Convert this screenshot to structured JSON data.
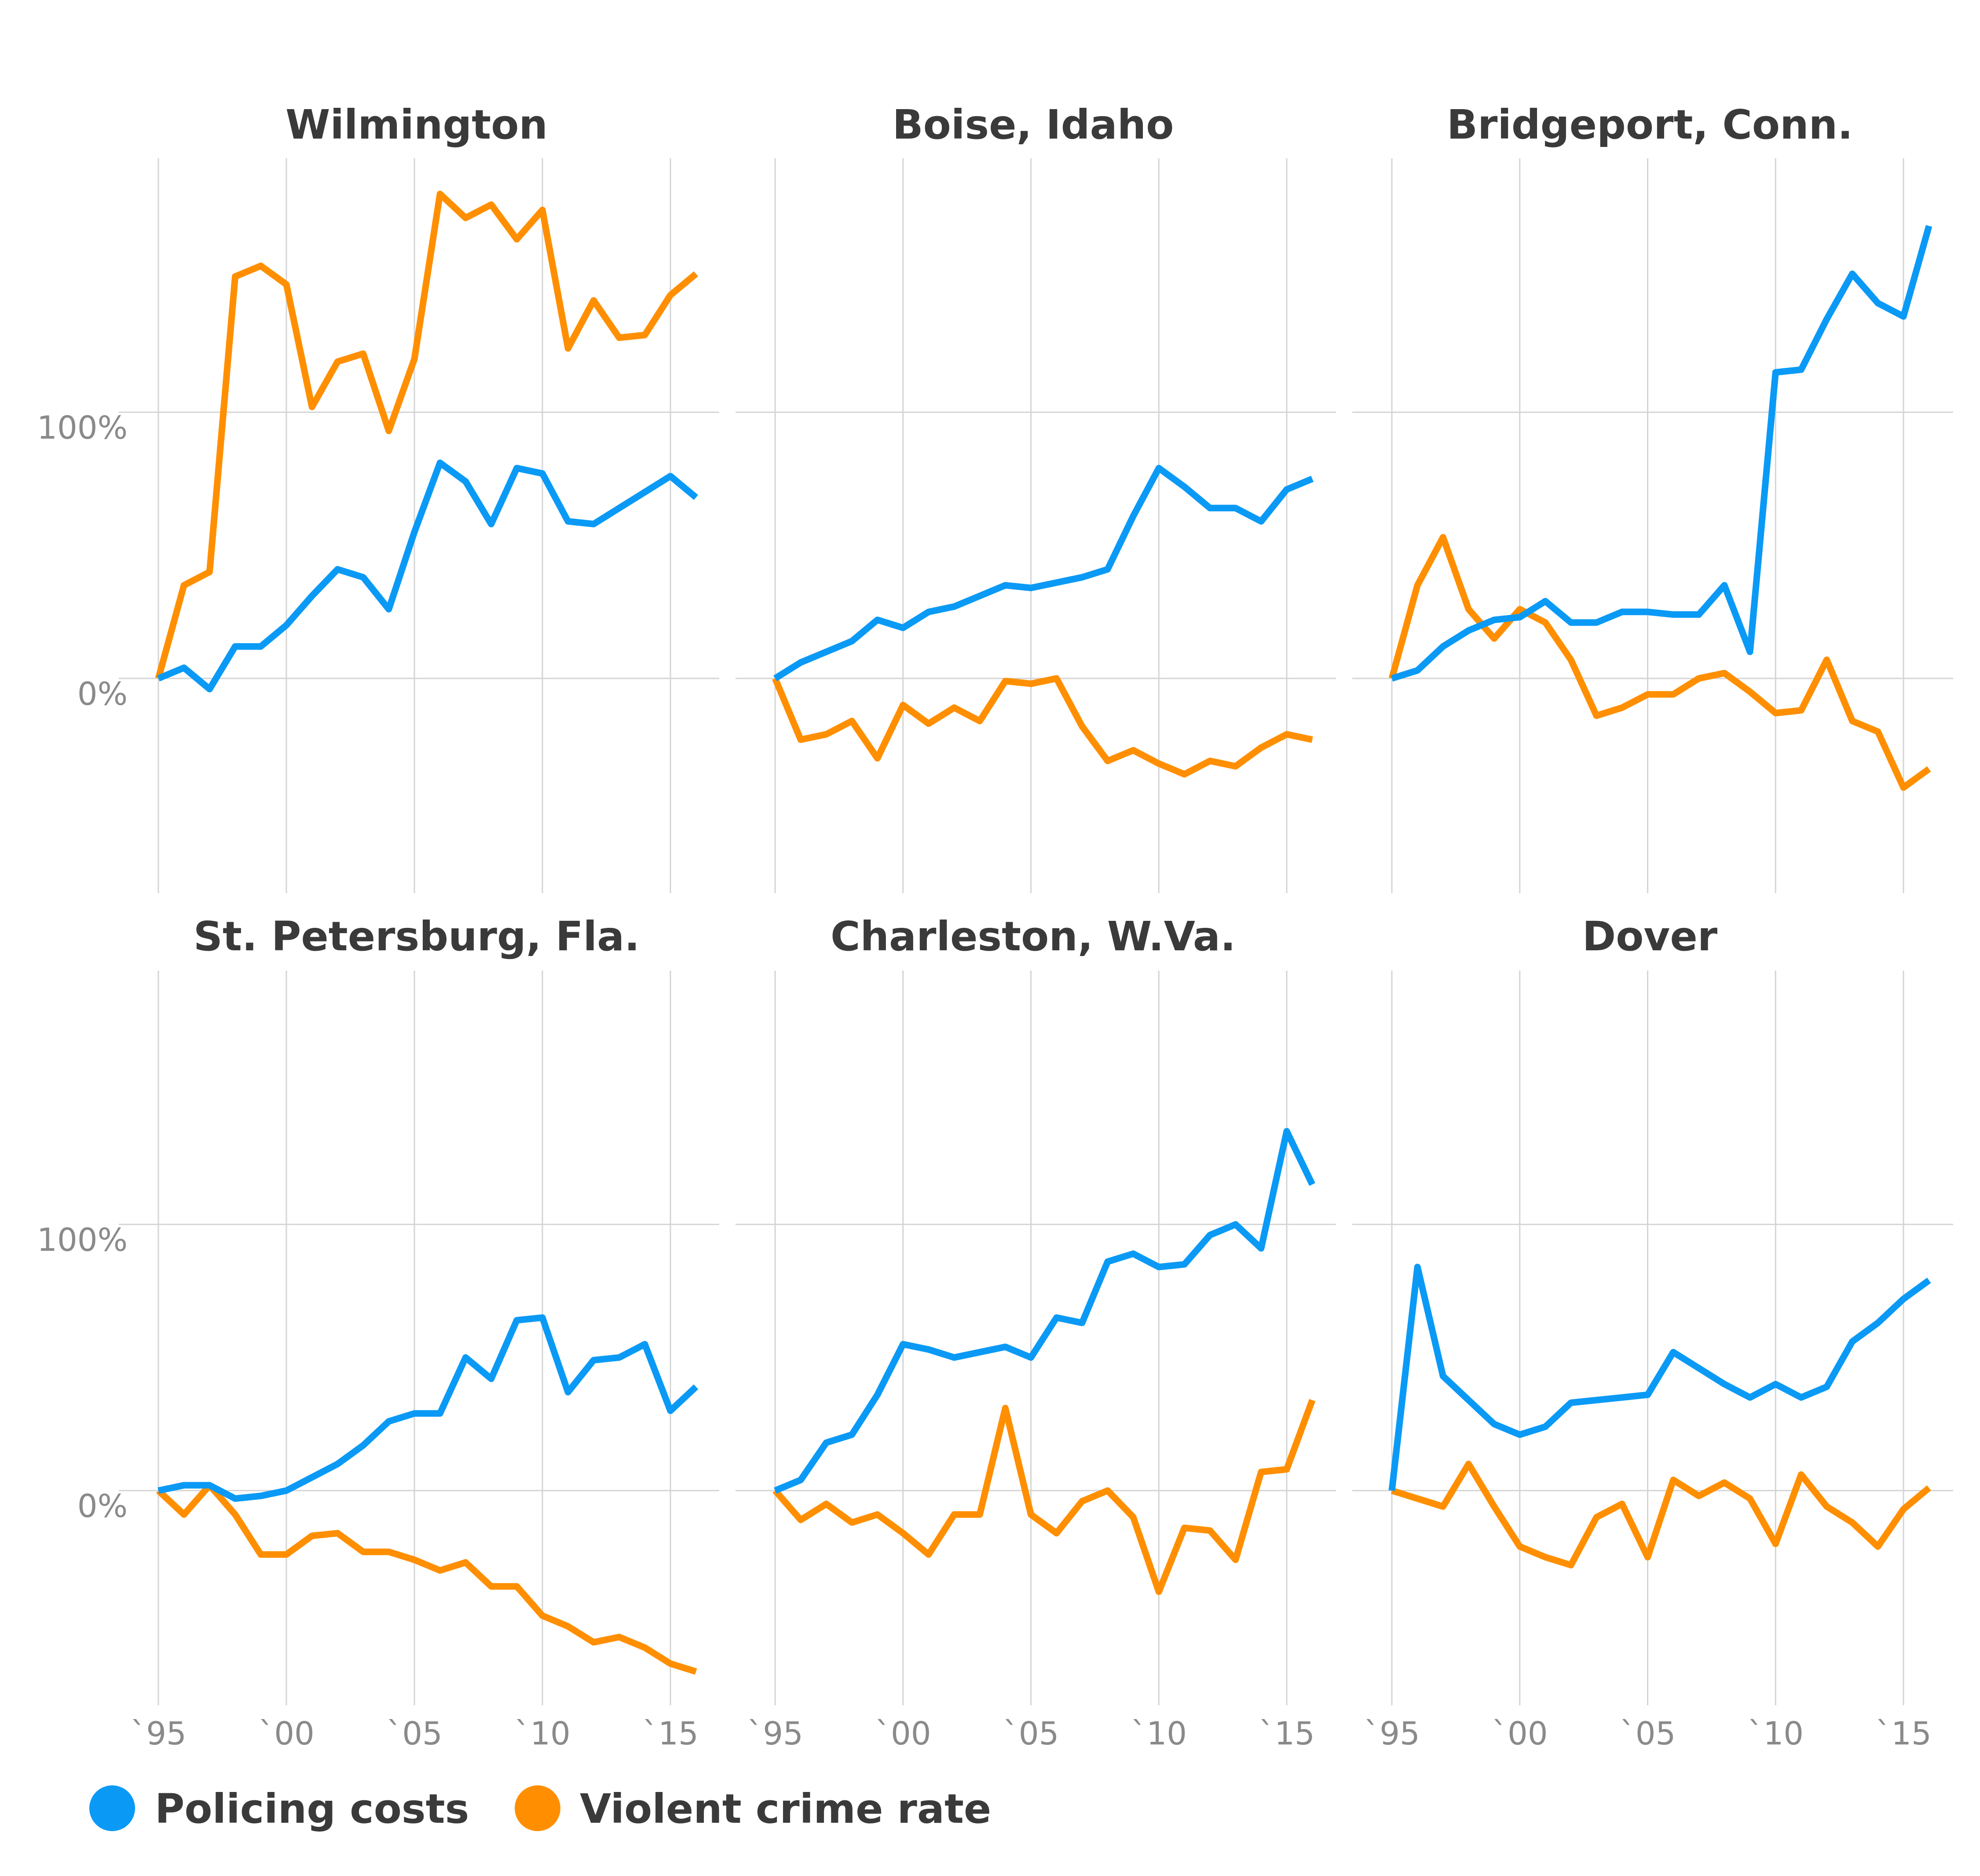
{
  "chart_data": {
    "type": "line",
    "legend_position": "bottom-left",
    "grid": true,
    "colors": {
      "policing": "#0a9af6",
      "violent": "#ff8f00",
      "grid": "#d4d4d4",
      "title": "#3a3a3a",
      "tick": "#8a8a8a"
    },
    "y_ticks": [
      {
        "value": 0,
        "label": "0%"
      },
      {
        "value": 100,
        "label": "100%"
      }
    ],
    "x_ticks": [
      {
        "value": 1995,
        "label": "`95"
      },
      {
        "value": 2000,
        "label": "`00"
      },
      {
        "value": 2005,
        "label": "`05"
      },
      {
        "value": 2010,
        "label": "`10"
      },
      {
        "value": 2015,
        "label": "`15"
      }
    ],
    "xlim": [
      1995,
      2016
    ],
    "ylim": [
      -80,
      195
    ],
    "legend": [
      {
        "key": "policing",
        "label": "Policing costs"
      },
      {
        "key": "violent",
        "label": "Violent crime rate"
      }
    ],
    "x": [
      1995,
      1996,
      1997,
      1998,
      1999,
      2000,
      2001,
      2002,
      2003,
      2004,
      2005,
      2006,
      2007,
      2008,
      2009,
      2010,
      2011,
      2012,
      2013,
      2014,
      2015,
      2016
    ],
    "panels": [
      {
        "title": "Wilmington",
        "policing": [
          0,
          4,
          -4,
          12,
          12,
          20,
          31,
          41,
          38,
          26,
          55,
          81,
          74,
          58,
          79,
          77,
          59,
          58,
          64,
          70,
          76,
          68
        ],
        "violent": [
          0,
          35,
          40,
          151,
          155,
          148,
          102,
          119,
          122,
          93,
          120,
          182,
          173,
          178,
          165,
          176,
          124,
          142,
          128,
          129,
          144,
          152
        ]
      },
      {
        "title": "Boise, Idaho",
        "policing": [
          0,
          6,
          10,
          14,
          22,
          19,
          25,
          27,
          31,
          35,
          34,
          36,
          38,
          41,
          61,
          79,
          72,
          64,
          64,
          59,
          71,
          75
        ],
        "violent": [
          0,
          -23,
          -21,
          -16,
          -30,
          -10,
          -17,
          -11,
          -16,
          -1,
          -2,
          0,
          -18,
          -31,
          -27,
          -32,
          -36,
          -31,
          -33,
          -26,
          -21,
          -23
        ]
      },
      {
        "title": "Bridgeport, Conn.",
        "policing": [
          0,
          3,
          12,
          18,
          22,
          23,
          29,
          21,
          21,
          25,
          25,
          24,
          24,
          35,
          10,
          115,
          116,
          135,
          152,
          141,
          136,
          170
        ],
        "violent": [
          0,
          35,
          53,
          26,
          15,
          26,
          21,
          7,
          -14,
          -11,
          -6,
          -6,
          0,
          2,
          -5,
          -13,
          -12,
          7,
          -16,
          -20,
          -41,
          -34
        ]
      },
      {
        "title": "St. Petersburg, Fla.",
        "policing": [
          0,
          2,
          2,
          -3,
          -2,
          0,
          5,
          10,
          17,
          26,
          29,
          29,
          50,
          42,
          64,
          65,
          37,
          49,
          50,
          55,
          30,
          39
        ],
        "violent": [
          0,
          -9,
          2,
          -9,
          -24,
          -24,
          -17,
          -16,
          -23,
          -23,
          -26,
          -30,
          -27,
          -36,
          -36,
          -47,
          -51,
          -57,
          -55,
          -59,
          -65,
          -68
        ]
      },
      {
        "title": "Charleston, W.Va.",
        "policing": [
          0,
          4,
          18,
          21,
          36,
          55,
          53,
          50,
          52,
          54,
          50,
          65,
          63,
          86,
          89,
          84,
          85,
          96,
          100,
          91,
          135,
          115
        ],
        "violent": [
          0,
          -11,
          -5,
          -12,
          -9,
          -16,
          -24,
          -9,
          -9,
          31,
          -9,
          -16,
          -4,
          0,
          -10,
          -38,
          -14,
          -15,
          -26,
          7,
          8,
          34
        ]
      },
      {
        "title": "Dover",
        "policing": [
          0,
          84,
          43,
          34,
          25,
          21,
          24,
          33,
          34,
          35,
          36,
          52,
          46,
          40,
          35,
          40,
          35,
          39,
          56,
          63,
          72,
          79
        ],
        "violent": [
          0,
          -3,
          -6,
          10,
          -6,
          -21,
          -25,
          -28,
          -10,
          -5,
          -25,
          4,
          -2,
          3,
          -3,
          -20,
          6,
          -6,
          -12,
          -21,
          -7,
          1
        ]
      }
    ]
  }
}
